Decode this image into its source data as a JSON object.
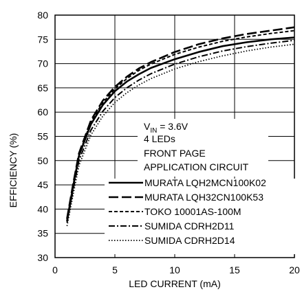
{
  "chart_data": {
    "type": "line",
    "xlabel": "LED CURRENT (mA)",
    "ylabel": "EFFICIENCY (%)",
    "xlim": [
      0,
      20
    ],
    "ylim": [
      30,
      80
    ],
    "x_ticks": [
      "0",
      "5",
      "10",
      "15",
      "20"
    ],
    "y_ticks": [
      "30",
      "35",
      "40",
      "45",
      "50",
      "55",
      "60",
      "65",
      "70",
      "75",
      "80"
    ],
    "grid": true,
    "annotation": {
      "vin_prefix": "V",
      "vin_subscript": "IN",
      "vin_value": " = 3.6V",
      "line2": "4 LEDs",
      "line3": "FRONT PAGE",
      "line4": "APPLICATION CIRCUIT"
    },
    "legend_position": "lower-right",
    "series": [
      {
        "name": "MURATA LQH2MCN100K02",
        "style": "solid",
        "x": [
          1,
          1.5,
          2,
          3,
          4,
          5,
          6,
          7,
          8,
          10,
          12,
          14,
          16,
          18,
          20
        ],
        "y": [
          37.5,
          44.5,
          51,
          57.5,
          61.5,
          64.3,
          66.3,
          67.8,
          69.1,
          70.9,
          72.4,
          73.6,
          74.4,
          75,
          75.4
        ]
      },
      {
        "name": "MURATA LQH32CN100K53",
        "style": "long-dash",
        "x": [
          1,
          1.5,
          2,
          3,
          4,
          5,
          6,
          7,
          8,
          10,
          12,
          14,
          16,
          18,
          20
        ],
        "y": [
          38,
          45,
          51.5,
          58.3,
          62.4,
          65.2,
          67.3,
          69,
          70.3,
          72.4,
          74,
          75.2,
          76.1,
          76.8,
          77.5
        ]
      },
      {
        "name": "TOKO 10001AS-100M",
        "style": "short-dash",
        "x": [
          1,
          1.5,
          2,
          3,
          4,
          5,
          6,
          7,
          8,
          10,
          12,
          14,
          16,
          18,
          20
        ],
        "y": [
          37.8,
          44.8,
          51.2,
          58,
          62,
          64.8,
          66.9,
          68.6,
          69.9,
          71.9,
          73.4,
          74.6,
          75.5,
          76.2,
          76.8
        ]
      },
      {
        "name": "SUMIDA CDRH2D11",
        "style": "dash-dot",
        "x": [
          1,
          1.5,
          2,
          3,
          4,
          5,
          6,
          7,
          8,
          10,
          12,
          14,
          16,
          18,
          20
        ],
        "y": [
          37.2,
          43.8,
          50,
          56.3,
          60.2,
          63,
          65,
          66.6,
          67.9,
          69.9,
          71.4,
          72.6,
          73.5,
          74.2,
          74.8
        ]
      },
      {
        "name": "SUMIDA CDRH2D14",
        "style": "dotted",
        "x": [
          1,
          1.5,
          2,
          3,
          4,
          5,
          6,
          7,
          8,
          10,
          12,
          14,
          16,
          18,
          20
        ],
        "y": [
          36.5,
          42.8,
          49,
          55.3,
          59.2,
          62,
          64,
          65.6,
          66.9,
          68.9,
          70.4,
          71.6,
          72.6,
          73.4,
          74
        ]
      }
    ]
  }
}
